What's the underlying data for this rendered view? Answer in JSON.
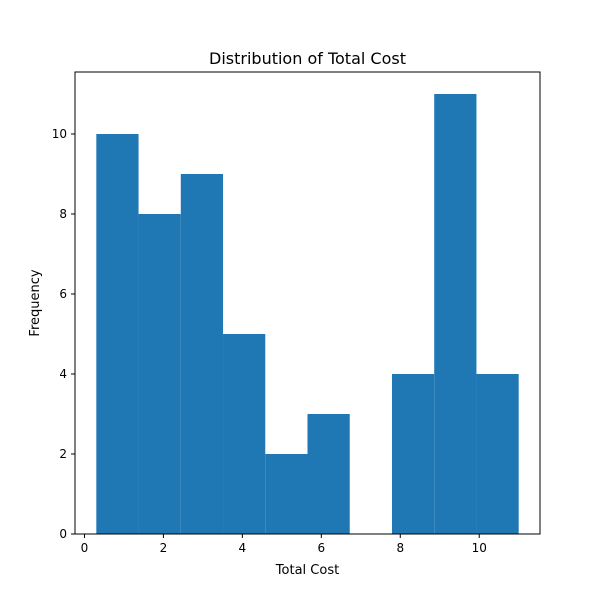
{
  "chart_data": {
    "type": "bar",
    "title": "Distribution of Total Cost",
    "xlabel": "Total Cost",
    "ylabel": "Frequency",
    "bins": [
      {
        "start": 0.3,
        "end": 1.37,
        "count": 10
      },
      {
        "start": 1.37,
        "end": 2.44,
        "count": 8
      },
      {
        "start": 2.44,
        "end": 3.51,
        "count": 9
      },
      {
        "start": 3.51,
        "end": 4.58,
        "count": 5
      },
      {
        "start": 4.58,
        "end": 5.65,
        "count": 2
      },
      {
        "start": 5.65,
        "end": 6.72,
        "count": 3
      },
      {
        "start": 6.72,
        "end": 7.79,
        "count": 0
      },
      {
        "start": 7.79,
        "end": 8.86,
        "count": 4
      },
      {
        "start": 8.86,
        "end": 9.93,
        "count": 11
      },
      {
        "start": 9.93,
        "end": 11.0,
        "count": 4
      }
    ],
    "xlim": [
      -0.24,
      11.54
    ],
    "ylim": [
      0,
      11.55
    ],
    "xticks": [
      0,
      2,
      4,
      6,
      8,
      10
    ],
    "yticks": [
      0,
      2,
      4,
      6,
      8,
      10
    ],
    "bar_color": "#1f77b4",
    "grid": false,
    "legend": "none"
  }
}
